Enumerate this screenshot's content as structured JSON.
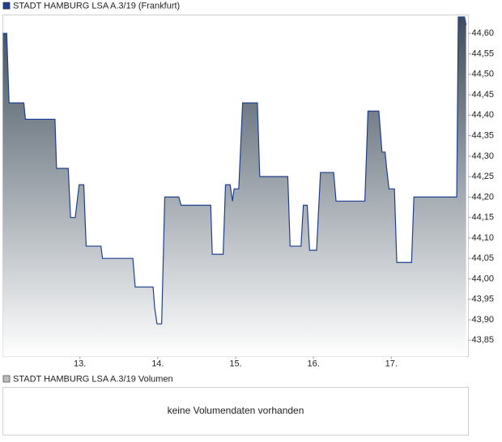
{
  "chart_data": {
    "type": "line",
    "x": [
      12.01,
      12.06,
      12.09,
      12.28,
      12.3,
      12.68,
      12.7,
      12.85,
      12.88,
      12.94,
      12.99,
      13.05,
      13.08,
      13.27,
      13.29,
      13.68,
      13.71,
      13.94,
      13.96,
      13.99,
      14.05,
      14.09,
      14.27,
      14.3,
      14.68,
      14.7,
      14.84,
      14.87,
      14.93,
      14.96,
      14.98,
      15.04,
      15.09,
      15.28,
      15.31,
      15.67,
      15.7,
      15.84,
      15.87,
      15.92,
      15.95,
      16.04,
      16.09,
      16.26,
      16.29,
      16.66,
      16.7,
      16.84,
      16.88,
      16.92,
      16.94,
      16.97,
      17.04,
      17.07,
      17.26,
      17.29,
      17.84,
      17.86,
      17.94,
      17.96
    ],
    "series": [
      {
        "name": "STADT HAMBURG LSA A.3/19 (Frankfurt)",
        "color": "#1f3f8f",
        "values": [
          44.6,
          44.6,
          44.43,
          44.43,
          44.39,
          44.39,
          44.27,
          44.27,
          44.15,
          44.15,
          44.23,
          44.23,
          44.08,
          44.08,
          44.05,
          44.05,
          43.98,
          43.98,
          43.93,
          43.89,
          43.89,
          44.2,
          44.2,
          44.18,
          44.18,
          44.06,
          44.06,
          44.23,
          44.23,
          44.19,
          44.22,
          44.22,
          44.43,
          44.43,
          44.25,
          44.25,
          44.08,
          44.08,
          44.18,
          44.18,
          44.07,
          44.07,
          44.26,
          44.26,
          44.19,
          44.19,
          44.41,
          44.41,
          44.31,
          44.31,
          44.27,
          44.22,
          44.22,
          44.04,
          44.04,
          44.2,
          44.2,
          44.64,
          44.64,
          44.62
        ]
      }
    ],
    "xlim": [
      12.01,
      17.99
    ],
    "xticks": [
      {
        "value": 13,
        "label": "13."
      },
      {
        "value": 14,
        "label": "14."
      },
      {
        "value": 15,
        "label": "15."
      },
      {
        "value": 16,
        "label": "16."
      },
      {
        "value": 17,
        "label": "17."
      }
    ],
    "ylim": [
      43.81,
      44.645
    ],
    "yticks": [
      {
        "value": 43.85,
        "label": "43,85"
      },
      {
        "value": 43.9,
        "label": "43,90"
      },
      {
        "value": 43.95,
        "label": "43,95"
      },
      {
        "value": 44.0,
        "label": "44,00"
      },
      {
        "value": 44.05,
        "label": "44,05"
      },
      {
        "value": 44.1,
        "label": "44,10"
      },
      {
        "value": 44.15,
        "label": "44,15"
      },
      {
        "value": 44.2,
        "label": "44,20"
      },
      {
        "value": 44.25,
        "label": "44,25"
      },
      {
        "value": 44.3,
        "label": "44,30"
      },
      {
        "value": 44.35,
        "label": "44,35"
      },
      {
        "value": 44.4,
        "label": "44,40"
      },
      {
        "value": 44.45,
        "label": "44,45"
      },
      {
        "value": 44.5,
        "label": "44,50"
      },
      {
        "value": 44.55,
        "label": "44,55"
      },
      {
        "value": 44.6,
        "label": "44,60"
      }
    ],
    "grid": false
  },
  "volume_panel": {
    "legend": "STADT HAMBURG LSA A.3/19 Volumen",
    "message": "keine Volumendaten vorhanden"
  }
}
